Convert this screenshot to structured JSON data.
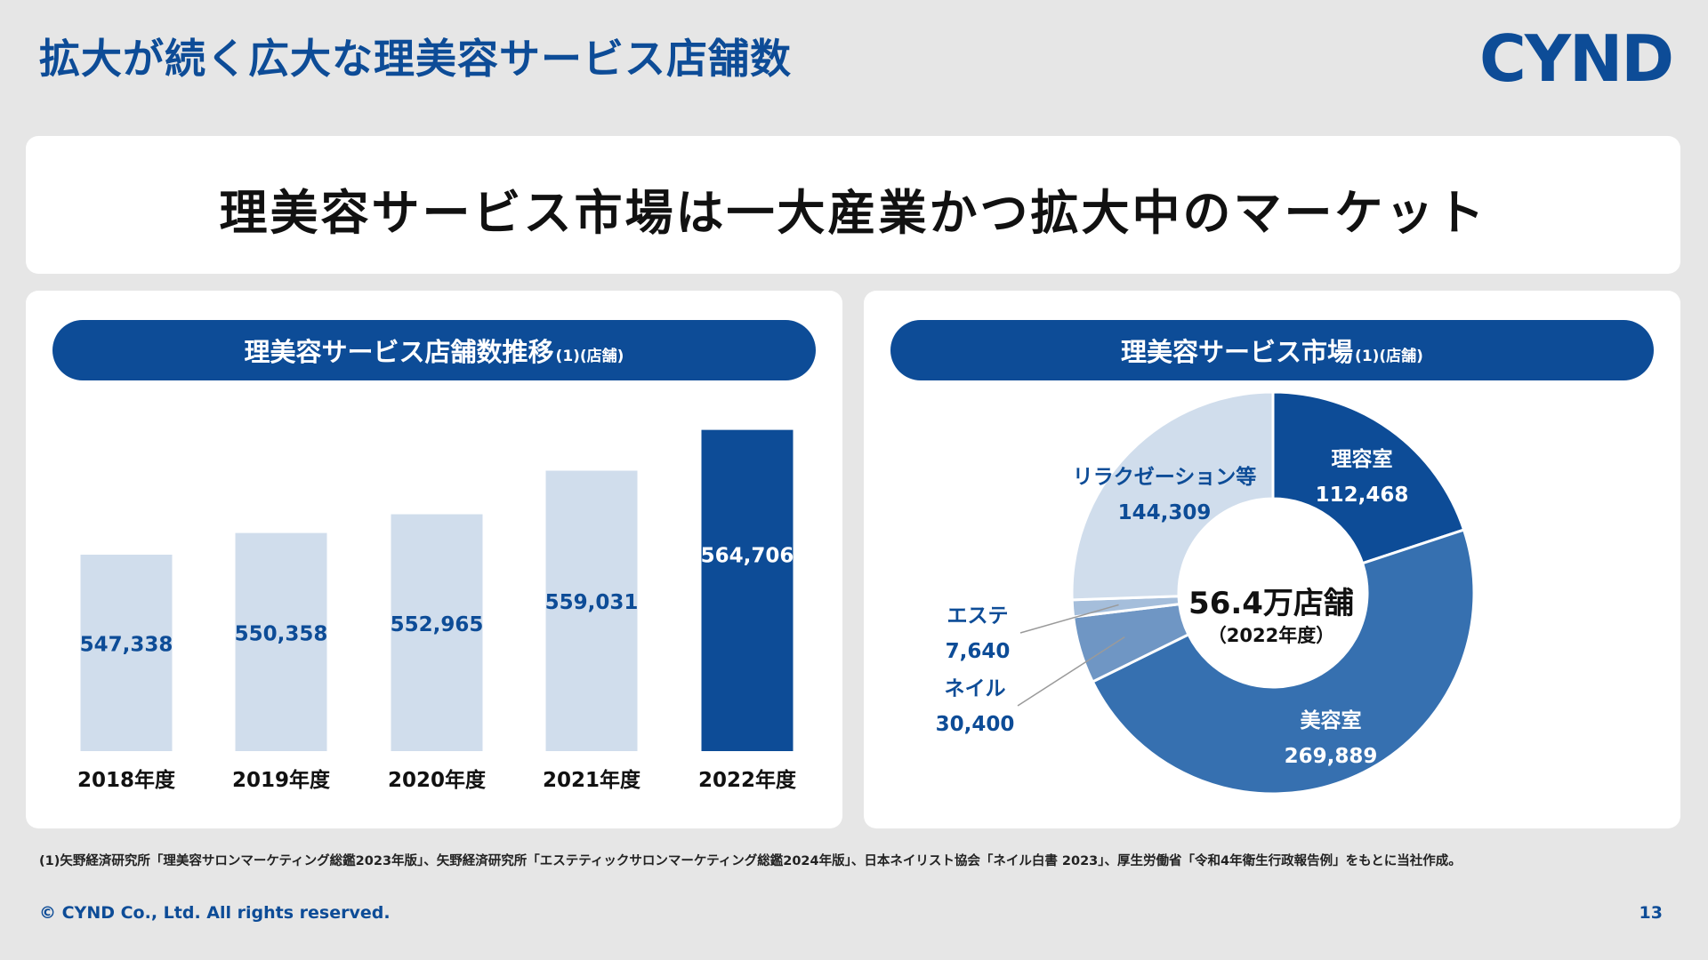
{
  "page_title": "拡大が続く広大な理美容サービス店舗数",
  "brand": {
    "logo_text": "CYND",
    "color": "#0d4c97"
  },
  "headline": "理美容サービス市場は一大産業かつ拡大中のマーケット",
  "left_panel": {
    "title": "理美容サービス店舗数推移",
    "title_note": "(1)(店舗)"
  },
  "right_panel": {
    "title": "理美容サービス市場",
    "title_note": "(1)(店舗)",
    "center_value": "56.4万店舗",
    "center_note": "（2022年度）"
  },
  "colors": {
    "bar_light": "#d0ddec",
    "bar_dark": "#0d4c97",
    "pie_dark": "#0d4c97",
    "pie_mid": "#3670b0",
    "pie_light": "#d0ddec",
    "pie_lightmid": "#a5bedb",
    "pie_grayblue": "#6f96c4"
  },
  "chart_data": [
    {
      "type": "bar",
      "title": "理美容サービス店舗数推移",
      "categories": [
        "2018年度",
        "2019年度",
        "2020年度",
        "2021年度",
        "2022年度"
      ],
      "values": [
        547338,
        550358,
        552965,
        559031,
        564706
      ],
      "value_labels": [
        "547,338",
        "550,358",
        "552,965",
        "559,031",
        "564,706"
      ],
      "highlight_index": 4,
      "ylim": [
        520000,
        568000
      ],
      "grid": false
    },
    {
      "type": "pie",
      "title": "理美容サービス市場",
      "slices": [
        {
          "label": "理容室",
          "value": 112468,
          "value_label": "112,468"
        },
        {
          "label": "美容室",
          "value": 269889,
          "value_label": "269,889"
        },
        {
          "label": "ネイル",
          "value": 30400,
          "value_label": "30,400"
        },
        {
          "label": "エステ",
          "value": 7640,
          "value_label": "7,640"
        },
        {
          "label": "リラクゼーション等",
          "value": 144309,
          "value_label": "144,309"
        }
      ]
    }
  ],
  "footnote": "(1)矢野経済研究所「理美容サロンマーケティング総鑑2023年版」、矢野経済研究所「エステティックサロンマーケティング総鑑2024年版」、日本ネイリスト協会「ネイル白書 2023」、厚生労働省「令和4年衛生行政報告例」をもとに当社作成。",
  "copyright": "© CYND Co., Ltd. All rights reserved.",
  "page_number": "13"
}
